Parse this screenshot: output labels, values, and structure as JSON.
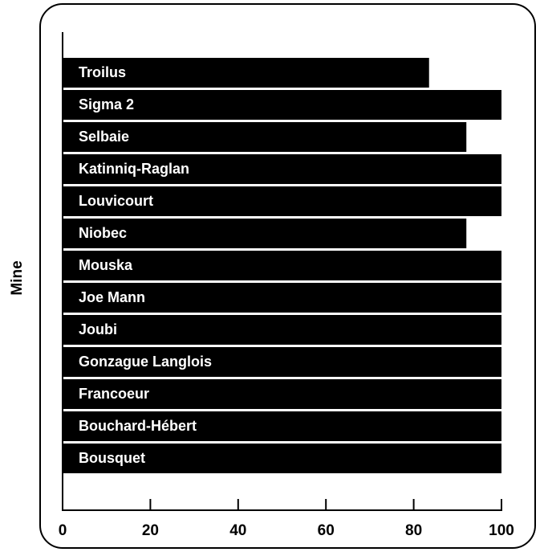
{
  "chart_data": {
    "type": "bar",
    "orientation": "horizontal",
    "ylabel": "Mine",
    "categories": [
      "Troilus",
      "Sigma 2",
      "Selbaie",
      "Katinniq-Raglan",
      "Louvicourt",
      "Niobec",
      "Mouska",
      "Joe Mann",
      "Joubi",
      "Gonzague Langlois",
      "Francoeur",
      "Bouchard-Hébert",
      "Bousquet"
    ],
    "values": [
      83.5,
      100,
      92,
      100,
      100,
      92,
      100,
      100,
      100,
      100,
      100,
      100,
      100
    ],
    "color": "#000000",
    "xlim": [
      0,
      100
    ],
    "xticks": [
      0,
      20,
      40,
      60,
      80,
      100
    ],
    "grid": false
  }
}
